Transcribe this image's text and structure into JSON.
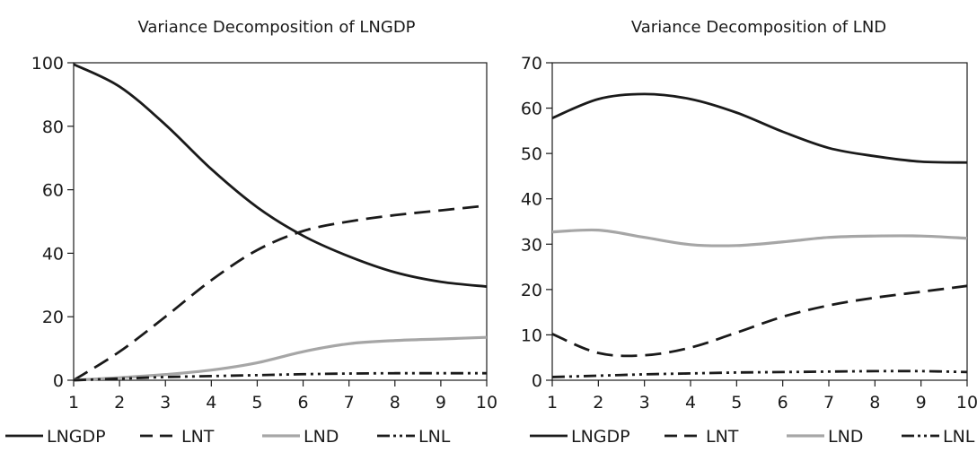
{
  "chart_data": [
    {
      "type": "line",
      "title": "Variance Decomposition of LNGDP",
      "xlabel": "",
      "ylabel": "",
      "x": [
        1,
        2,
        3,
        4,
        5,
        6,
        7,
        8,
        9,
        10
      ],
      "ylim": [
        0,
        100
      ],
      "yticks": [
        0,
        20,
        40,
        60,
        80,
        100
      ],
      "grid": false,
      "legend_position": "bottom",
      "series": [
        {
          "name": "LNGDP",
          "style": "solid",
          "color": "#1a1a1a",
          "values": [
            99.5,
            92.5,
            80.5,
            66.5,
            54.5,
            45.5,
            39.0,
            34.0,
            31.0,
            29.5
          ]
        },
        {
          "name": "LNT",
          "style": "dashed",
          "color": "#1a1a1a",
          "values": [
            0.0,
            9.0,
            20.0,
            31.5,
            41.0,
            47.0,
            50.0,
            52.0,
            53.5,
            55.0
          ]
        },
        {
          "name": "LND",
          "style": "solid",
          "color": "#a6a6a6",
          "values": [
            0.0,
            0.8,
            1.8,
            3.2,
            5.5,
            9.0,
            11.5,
            12.5,
            13.0,
            13.5
          ]
        },
        {
          "name": "LNL",
          "style": "dashdotdot",
          "color": "#1a1a1a",
          "values": [
            0.0,
            0.5,
            1.0,
            1.3,
            1.6,
            1.9,
            2.1,
            2.2,
            2.2,
            2.2
          ]
        }
      ]
    },
    {
      "type": "line",
      "title": "Variance Decomposition of LND",
      "xlabel": "",
      "ylabel": "",
      "x": [
        1,
        2,
        3,
        4,
        5,
        6,
        7,
        8,
        9,
        10
      ],
      "ylim": [
        0,
        70
      ],
      "yticks": [
        0,
        10,
        20,
        30,
        40,
        50,
        60,
        70
      ],
      "grid": false,
      "legend_position": "bottom",
      "series": [
        {
          "name": "LNGDP",
          "style": "solid",
          "color": "#1a1a1a",
          "values": [
            57.8,
            62.0,
            63.1,
            62.0,
            59.0,
            54.8,
            51.2,
            49.4,
            48.2,
            48.0
          ]
        },
        {
          "name": "LNT",
          "style": "dashed",
          "color": "#1a1a1a",
          "values": [
            10.2,
            6.0,
            5.5,
            7.2,
            10.5,
            14.0,
            16.5,
            18.2,
            19.5,
            20.8
          ]
        },
        {
          "name": "LND",
          "style": "solid",
          "color": "#a6a6a6",
          "values": [
            32.7,
            33.1,
            31.5,
            29.9,
            29.7,
            30.5,
            31.5,
            31.8,
            31.8,
            31.3
          ]
        },
        {
          "name": "LNL",
          "style": "dashdotdot",
          "color": "#1a1a1a",
          "values": [
            0.7,
            1.0,
            1.3,
            1.5,
            1.7,
            1.8,
            1.9,
            2.0,
            2.0,
            1.8
          ]
        }
      ]
    }
  ]
}
